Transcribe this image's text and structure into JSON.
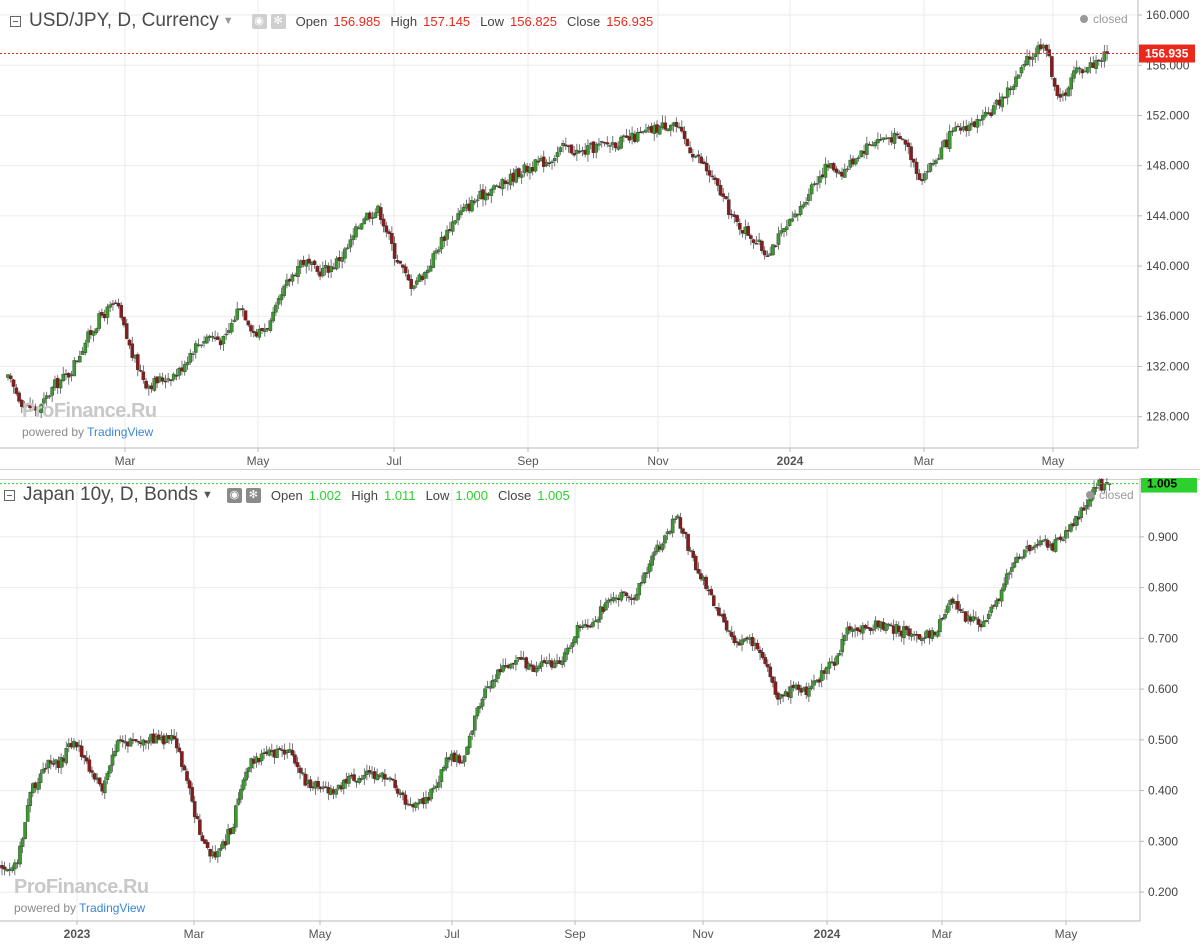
{
  "top_chart": {
    "symbol": "USD/JPY, D, Currency",
    "ohlc": {
      "open_label": "Open",
      "open": "156.985",
      "high_label": "High",
      "high": "157.145",
      "low_label": "Low",
      "low": "156.825",
      "close_label": "Close",
      "close": "156.935"
    },
    "status": "closed",
    "watermark": "ProFinance.Ru",
    "powered_prefix": "powered by",
    "powered_brand": "TradingView",
    "last_price_label": "156.935"
  },
  "bottom_chart": {
    "symbol": "Japan 10y, D, Bonds",
    "ohlc": {
      "open_label": "Open",
      "open": "1.002",
      "high_label": "High",
      "high": "1.011",
      "low_label": "Low",
      "low": "1.000",
      "close_label": "Close",
      "close": "1.005"
    },
    "status": "closed",
    "watermark": "ProFinance.Ru",
    "powered_prefix": "powered by",
    "powered_brand": "TradingView",
    "last_price_label": "1.005"
  },
  "colors": {
    "up": "#3a9a2e",
    "down": "#8b1a1a",
    "ohlc_top": "#e8291c",
    "ohlc_bottom": "#2ed02e",
    "price_line_top": "#e8291c",
    "price_line_bottom": "#2ed02e",
    "grid": "#ebebeb"
  },
  "chart_data": [
    {
      "type": "candlestick",
      "title": "USD/JPY, D, Currency",
      "x_tick_labels": [
        "Mar",
        "May",
        "Jul",
        "Sep",
        "Nov",
        "2024",
        "Mar",
        "May"
      ],
      "y_tick_labels": [
        "160.000",
        "156.000",
        "152.000",
        "148.000",
        "144.000",
        "140.000",
        "136.000",
        "132.000",
        "128.000"
      ],
      "ylim": [
        125.5,
        161.2
      ],
      "last_value": 156.935,
      "series": [
        {
          "name": "USD/JPY",
          "close_path": [
            [
              "2023-01-16",
              131.0
            ],
            [
              "2023-01-23",
              129.0
            ],
            [
              "2023-01-30",
              128.5
            ],
            [
              "2023-02-06",
              130.5
            ],
            [
              "2023-02-13",
              131.5
            ],
            [
              "2023-02-20",
              134.0
            ],
            [
              "2023-02-27",
              136.0
            ],
            [
              "2023-03-06",
              137.0
            ],
            [
              "2023-03-13",
              133.0
            ],
            [
              "2023-03-20",
              130.5
            ],
            [
              "2023-03-27",
              131.0
            ],
            [
              "2023-04-03",
              131.5
            ],
            [
              "2023-04-10",
              133.5
            ],
            [
              "2023-04-17",
              134.5
            ],
            [
              "2023-04-24",
              134.0
            ],
            [
              "2023-05-01",
              137.0
            ],
            [
              "2023-05-08",
              134.5
            ],
            [
              "2023-05-15",
              135.5
            ],
            [
              "2023-05-22",
              138.5
            ],
            [
              "2023-05-29",
              140.5
            ],
            [
              "2023-06-05",
              139.5
            ],
            [
              "2023-06-12",
              140.0
            ],
            [
              "2023-06-19",
              141.5
            ],
            [
              "2023-06-26",
              144.0
            ],
            [
              "2023-07-03",
              144.5
            ],
            [
              "2023-07-10",
              141.0
            ],
            [
              "2023-07-17",
              138.5
            ],
            [
              "2023-07-24",
              139.5
            ],
            [
              "2023-07-31",
              142.0
            ],
            [
              "2023-08-07",
              144.0
            ],
            [
              "2023-08-14",
              145.0
            ],
            [
              "2023-08-21",
              146.0
            ],
            [
              "2023-08-28",
              146.5
            ],
            [
              "2023-09-04",
              147.5
            ],
            [
              "2023-09-11",
              148.0
            ],
            [
              "2023-09-18",
              148.5
            ],
            [
              "2023-09-25",
              149.5
            ],
            [
              "2023-10-02",
              149.0
            ],
            [
              "2023-10-09",
              149.5
            ],
            [
              "2023-10-16",
              149.8
            ],
            [
              "2023-10-23",
              150.0
            ],
            [
              "2023-10-30",
              150.5
            ],
            [
              "2023-11-06",
              151.0
            ],
            [
              "2023-11-13",
              151.5
            ],
            [
              "2023-11-20",
              149.5
            ],
            [
              "2023-11-27",
              148.0
            ],
            [
              "2023-12-04",
              146.0
            ],
            [
              "2023-12-11",
              143.5
            ],
            [
              "2023-12-18",
              142.5
            ],
            [
              "2023-12-25",
              141.0
            ],
            [
              "2024-01-01",
              142.5
            ],
            [
              "2024-01-08",
              144.0
            ],
            [
              "2024-01-15",
              146.5
            ],
            [
              "2024-01-22",
              148.0
            ],
            [
              "2024-01-29",
              147.5
            ],
            [
              "2024-02-05",
              149.0
            ],
            [
              "2024-02-12",
              150.0
            ],
            [
              "2024-02-19",
              150.3
            ],
            [
              "2024-02-26",
              150.0
            ],
            [
              "2024-03-04",
              147.0
            ],
            [
              "2024-03-11",
              148.5
            ],
            [
              "2024-03-18",
              150.5
            ],
            [
              "2024-03-25",
              151.2
            ],
            [
              "2024-04-01",
              151.5
            ],
            [
              "2024-04-08",
              153.0
            ],
            [
              "2024-04-15",
              154.5
            ],
            [
              "2024-04-22",
              156.5
            ],
            [
              "2024-04-29",
              158.0
            ],
            [
              "2024-05-06",
              153.0
            ],
            [
              "2024-05-13",
              155.5
            ],
            [
              "2024-05-20",
              156.0
            ],
            [
              "2024-05-27",
              156.9
            ]
          ]
        }
      ]
    },
    {
      "type": "candlestick",
      "title": "Japan 10y, D, Bonds",
      "x_tick_labels": [
        "2023",
        "Mar",
        "May",
        "Jul",
        "Sep",
        "Nov",
        "2024",
        "Mar",
        "May"
      ],
      "y_tick_labels": [
        "0.900",
        "0.800",
        "0.700",
        "0.600",
        "0.500",
        "0.400",
        "0.300",
        "0.200"
      ],
      "ylim": [
        0.143,
        1.016
      ],
      "last_value": 1.005,
      "series": [
        {
          "name": "Japan 10y",
          "close_path": [
            [
              "2022-12-05",
              0.25
            ],
            [
              "2022-12-12",
              0.25
            ],
            [
              "2022-12-19",
              0.4
            ],
            [
              "2022-12-26",
              0.45
            ],
            [
              "2023-01-02",
              0.45
            ],
            [
              "2023-01-09",
              0.5
            ],
            [
              "2023-01-16",
              0.45
            ],
            [
              "2023-01-23",
              0.4
            ],
            [
              "2023-01-30",
              0.49
            ],
            [
              "2023-02-06",
              0.5
            ],
            [
              "2023-02-13",
              0.5
            ],
            [
              "2023-02-20",
              0.5
            ],
            [
              "2023-02-27",
              0.5
            ],
            [
              "2023-03-06",
              0.4
            ],
            [
              "2023-03-13",
              0.29
            ],
            [
              "2023-03-20",
              0.27
            ],
            [
              "2023-03-27",
              0.33
            ],
            [
              "2023-04-03",
              0.45
            ],
            [
              "2023-04-10",
              0.47
            ],
            [
              "2023-04-17",
              0.47
            ],
            [
              "2023-04-24",
              0.48
            ],
            [
              "2023-05-01",
              0.42
            ],
            [
              "2023-05-08",
              0.41
            ],
            [
              "2023-05-15",
              0.4
            ],
            [
              "2023-05-22",
              0.42
            ],
            [
              "2023-05-29",
              0.43
            ],
            [
              "2023-06-05",
              0.43
            ],
            [
              "2023-06-12",
              0.42
            ],
            [
              "2023-06-19",
              0.38
            ],
            [
              "2023-06-26",
              0.37
            ],
            [
              "2023-07-03",
              0.4
            ],
            [
              "2023-07-10",
              0.47
            ],
            [
              "2023-07-17",
              0.46
            ],
            [
              "2023-07-24",
              0.55
            ],
            [
              "2023-07-31",
              0.62
            ],
            [
              "2023-08-07",
              0.64
            ],
            [
              "2023-08-14",
              0.66
            ],
            [
              "2023-08-21",
              0.64
            ],
            [
              "2023-08-28",
              0.65
            ],
            [
              "2023-09-04",
              0.66
            ],
            [
              "2023-09-11",
              0.72
            ],
            [
              "2023-09-18",
              0.73
            ],
            [
              "2023-09-25",
              0.77
            ],
            [
              "2023-10-02",
              0.79
            ],
            [
              "2023-10-09",
              0.78
            ],
            [
              "2023-10-16",
              0.85
            ],
            [
              "2023-10-23",
              0.9
            ],
            [
              "2023-10-30",
              0.94
            ],
            [
              "2023-11-06",
              0.85
            ],
            [
              "2023-11-13",
              0.8
            ],
            [
              "2023-11-20",
              0.74
            ],
            [
              "2023-11-27",
              0.68
            ],
            [
              "2023-12-04",
              0.7
            ],
            [
              "2023-12-11",
              0.66
            ],
            [
              "2023-12-18",
              0.58
            ],
            [
              "2023-12-25",
              0.6
            ],
            [
              "2024-01-01",
              0.59
            ],
            [
              "2024-01-08",
              0.63
            ],
            [
              "2024-01-15",
              0.66
            ],
            [
              "2024-01-22",
              0.73
            ],
            [
              "2024-01-29",
              0.72
            ],
            [
              "2024-02-05",
              0.73
            ],
            [
              "2024-02-12",
              0.72
            ],
            [
              "2024-02-19",
              0.71
            ],
            [
              "2024-02-26",
              0.7
            ],
            [
              "2024-03-04",
              0.72
            ],
            [
              "2024-03-11",
              0.78
            ],
            [
              "2024-03-18",
              0.74
            ],
            [
              "2024-03-25",
              0.73
            ],
            [
              "2024-04-01",
              0.76
            ],
            [
              "2024-04-08",
              0.83
            ],
            [
              "2024-04-15",
              0.87
            ],
            [
              "2024-04-22",
              0.89
            ],
            [
              "2024-04-29",
              0.88
            ],
            [
              "2024-05-06",
              0.91
            ],
            [
              "2024-05-13",
              0.95
            ],
            [
              "2024-05-20",
              1.0
            ],
            [
              "2024-05-27",
              1.005
            ]
          ]
        }
      ]
    }
  ]
}
